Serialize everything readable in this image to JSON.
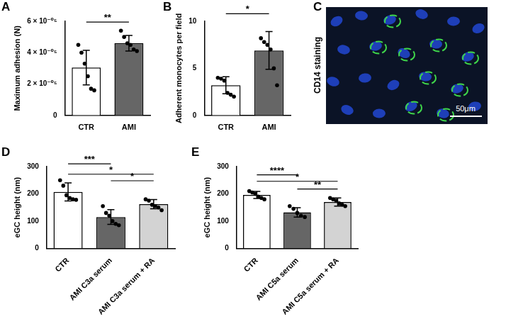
{
  "chart_data": [
    {
      "panel": "A",
      "type": "bar",
      "ylabel": "Maximum adhesion (N)",
      "categories": [
        "CTR",
        "AMI"
      ],
      "values": [
        3.05e-05,
        4.6e-05
      ],
      "errors": [
        1.1e-05,
        5e-06
      ],
      "points": [
        [
          4.5e-05,
          4e-05,
          3.3e-05,
          2.5e-05,
          1.7e-05,
          1.6e-05
        ],
        [
          5.4e-05,
          5e-05,
          4.6e-05,
          4.5e-05,
          4.2e-05,
          4.1e-05
        ]
      ],
      "colors": [
        "#ffffff",
        "#666666"
      ],
      "ylim": [
        0,
        6e-05
      ],
      "yticks": [
        0,
        {
          "value": 2e-05,
          "label": "2 × 10⁻⁰⁵"
        },
        {
          "value": 4e-05,
          "label": "4 × 10⁻⁰⁵"
        },
        {
          "value": 6e-05,
          "label": "6 × 10⁻⁰⁵"
        }
      ],
      "grid": false,
      "annotations": [
        {
          "from": "CTR",
          "to": "AMI",
          "y": 5.95e-05,
          "text": "**"
        }
      ]
    },
    {
      "panel": "B",
      "type": "bar",
      "ylabel": "Adherent monocytes per field",
      "categories": [
        "CTR",
        "AMI"
      ],
      "values": [
        3.2,
        6.9
      ],
      "errors": [
        0.9,
        2.0
      ],
      "points": [
        [
          4.0,
          3.9,
          3.7,
          2.4,
          2.2,
          2.0
        ],
        [
          8.2,
          7.8,
          7.5,
          7.0,
          5.0,
          3.2
        ]
      ],
      "colors": [
        "#ffffff",
        "#666666"
      ],
      "ylim": [
        0,
        10
      ],
      "yticks": [
        0,
        5,
        10
      ],
      "grid": false,
      "annotations": [
        {
          "from": "CTR",
          "to": "AMI",
          "y": 10.8,
          "text": "*"
        }
      ]
    },
    {
      "panel": "D",
      "type": "bar",
      "ylabel": "eGC height (nm)",
      "categories": [
        "CTR",
        "AMI C3a serum",
        "AMI C3a serum + RA"
      ],
      "values": [
        207,
        115,
        162
      ],
      "errors": [
        33,
        27,
        17
      ],
      "points": [
        [
          250,
          230,
          195,
          185,
          180,
          178
        ],
        [
          155,
          130,
          120,
          100,
          90,
          85
        ],
        [
          180,
          175,
          160,
          155,
          150,
          140
        ]
      ],
      "colors": [
        "#ffffff",
        "#666666",
        "#d3d3d3"
      ],
      "ylim": [
        0,
        300
      ],
      "yticks": [
        0,
        100,
        200,
        300
      ],
      "grid": false,
      "annotations": [
        {
          "from": "CTR",
          "to": "AMI C3a serum",
          "y": 310,
          "text": "***"
        },
        {
          "from": "CTR",
          "to": "AMI C3a serum + RA",
          "y": 272,
          "text": "*"
        },
        {
          "from": "AMI C3a serum",
          "to": "AMI C3a serum + RA",
          "y": 248,
          "text": "*"
        }
      ]
    },
    {
      "panel": "E",
      "type": "bar",
      "ylabel": "eGC height (nm)",
      "categories": [
        "CTR",
        "AMI C5a serum",
        "AMI C5a serum + RA"
      ],
      "values": [
        196,
        132,
        170
      ],
      "errors": [
        13,
        17,
        15
      ],
      "points": [
        [
          210,
          205,
          200,
          190,
          185,
          180
        ],
        [
          155,
          145,
          130,
          120,
          115
        ],
        [
          185,
          180,
          175,
          165,
          160,
          155
        ]
      ],
      "colors": [
        "#ffffff",
        "#666666",
        "#d3d3d3"
      ],
      "ylim": [
        0,
        300
      ],
      "yticks": [
        0,
        100,
        200,
        300
      ],
      "grid": false,
      "annotations": [
        {
          "from": "CTR",
          "to": "AMI C5a serum",
          "y": 270,
          "text": "****"
        },
        {
          "from": "CTR",
          "to": "AMI C5a serum + RA",
          "y": 246,
          "text": "*"
        },
        {
          "from": "AMI C5a serum",
          "to": "AMI C5a serum + RA",
          "y": 218,
          "text": "**"
        }
      ]
    }
  ],
  "image_panel": {
    "panel": "C",
    "side_label": "CD14 staining",
    "scale_bar": "50μm"
  }
}
